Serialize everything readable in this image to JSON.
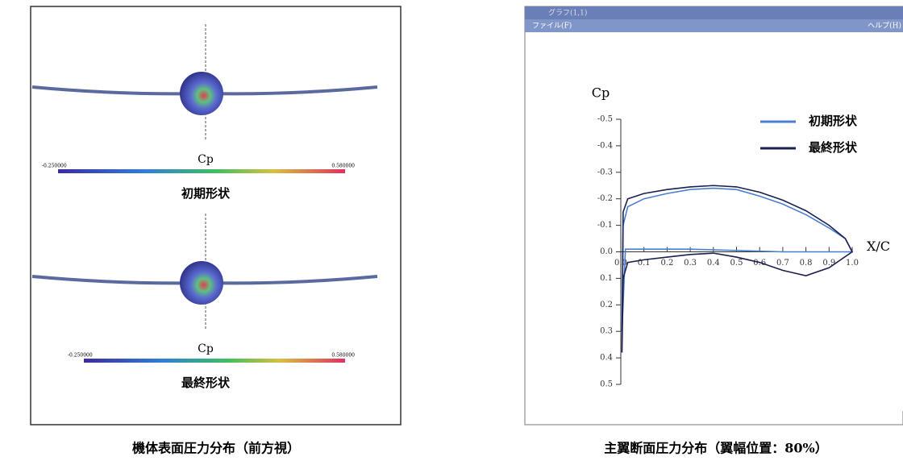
{
  "left_panel": {
    "views": [
      {
        "colorbar_min": "-0.250000",
        "colorbar_max": "0.580000",
        "colorbar_label": "Cp",
        "caption": "初期形状"
      },
      {
        "colorbar_min": "-0.250000",
        "colorbar_max": "0.580000",
        "colorbar_label": "Cp",
        "caption": "最終形状"
      }
    ],
    "caption": "機体表面圧力分布（前方視）"
  },
  "window": {
    "title": "グラフ(1,1)",
    "menu": [
      "ファイル(F)",
      "ヘルプ(H)"
    ]
  },
  "chart_data": {
    "type": "line",
    "ylabel": "Cp",
    "xlabel": "X/C",
    "xlim": [
      0,
      1
    ],
    "xticks": [
      {
        "value": 0,
        "label": "0.0"
      },
      0.1,
      0.2,
      0.3,
      0.4,
      0.5,
      0.6,
      0.7,
      0.8,
      0.9,
      {
        "value": 1,
        "label": "1.0"
      }
    ],
    "ylim": [
      -0.5,
      0.5
    ],
    "yticks": [
      -0.5,
      -0.4,
      -0.3,
      -0.2,
      -0.1,
      {
        "value": 0,
        "label": "0.0"
      },
      0.1,
      0.2,
      0.3,
      0.4,
      0.5
    ],
    "inverted_y": true,
    "series": [
      {
        "name": "初期形状",
        "color": "#4a7fd0",
        "x": [
          0.005,
          0.01,
          0.03,
          0.1,
          0.2,
          0.3,
          0.4,
          0.5,
          0.6,
          0.7,
          0.8,
          0.9,
          0.97,
          1.0,
          0.9,
          0.7,
          0.5,
          0.3,
          0.1,
          0.02,
          0.005
        ],
        "values": [
          0.3,
          -0.1,
          -0.17,
          -0.2,
          -0.22,
          -0.235,
          -0.24,
          -0.235,
          -0.21,
          -0.18,
          -0.14,
          -0.09,
          -0.05,
          0.0,
          0.0,
          0.0,
          -0.005,
          -0.01,
          -0.01,
          -0.01,
          0.3
        ]
      },
      {
        "name": "最終形状",
        "color": "#1a2050",
        "x": [
          0.005,
          0.01,
          0.03,
          0.1,
          0.2,
          0.3,
          0.4,
          0.5,
          0.6,
          0.7,
          0.8,
          0.9,
          0.97,
          1.0,
          0.9,
          0.8,
          0.7,
          0.6,
          0.5,
          0.4,
          0.3,
          0.2,
          0.1,
          0.03,
          0.01,
          0.005
        ],
        "values": [
          0.38,
          -0.15,
          -0.2,
          -0.22,
          -0.235,
          -0.245,
          -0.25,
          -0.245,
          -0.225,
          -0.195,
          -0.155,
          -0.1,
          -0.05,
          0.0,
          0.06,
          0.09,
          0.07,
          0.04,
          0.02,
          0.005,
          0.01,
          0.02,
          0.03,
          0.04,
          0.1,
          0.38
        ]
      }
    ]
  },
  "right_caption": "主翼断面圧力分布（翼幅位置：80%）"
}
